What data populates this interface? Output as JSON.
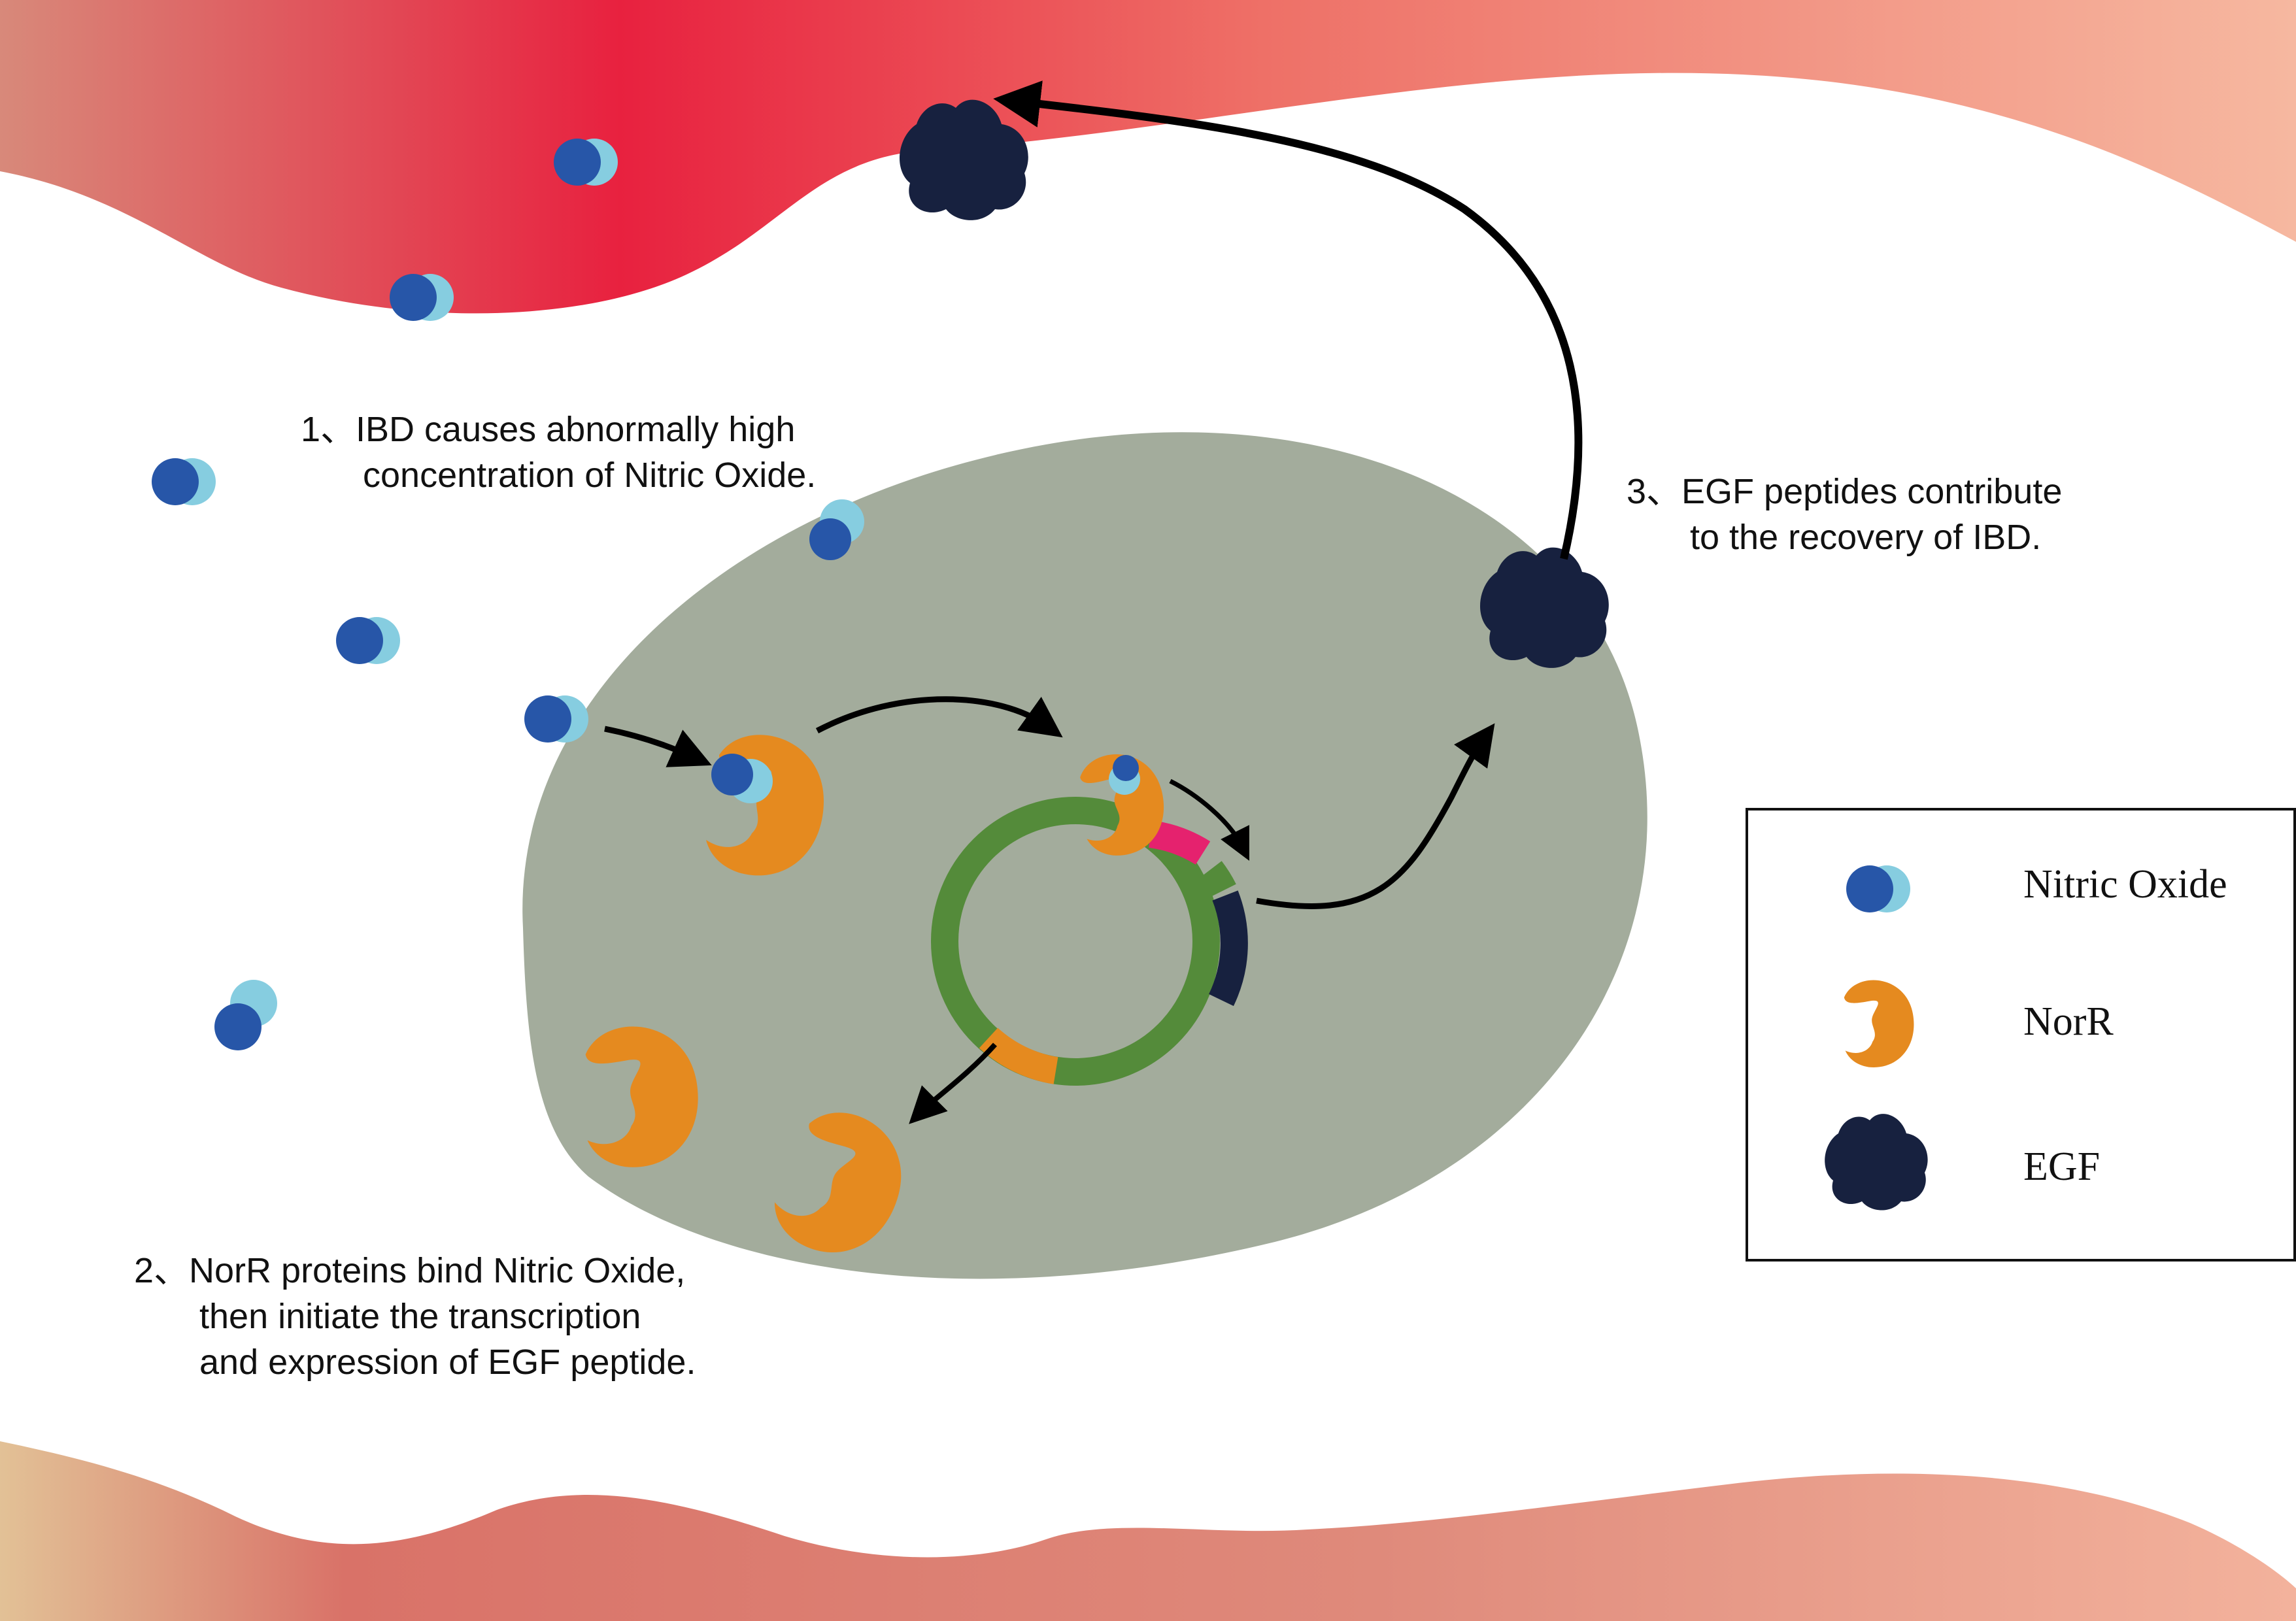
{
  "steps": [
    {
      "lines": [
        "1、IBD causes abnormally high",
        "concentration of Nitric Oxide."
      ]
    },
    {
      "lines": [
        "2、NorR proteins bind Nitric Oxide,",
        "then initiate the transcription",
        "and expression of EGF peptide."
      ]
    },
    {
      "lines": [
        "3、EGF peptides contribute",
        "to the recovery of IBD."
      ]
    }
  ],
  "legend": {
    "items": [
      {
        "icon": "nitric-oxide-icon",
        "label": "Nitric Oxide"
      },
      {
        "icon": "norr-icon",
        "label": "NorR"
      },
      {
        "icon": "egf-icon",
        "label": "EGF"
      }
    ]
  },
  "colors": {
    "tissue_top": [
      "#d8897a",
      "#e8213f",
      "#ee7067",
      "#f6b8a0"
    ],
    "tissue_bottom": [
      "#e2c196",
      "#d97268",
      "#df8a7b",
      "#f3b29c"
    ],
    "cell": "#a3ac9c",
    "no_dark": "#2756a8",
    "no_light": "#86cde0",
    "norr": "#e58a1f",
    "egf": "#17213f",
    "plasmid": "#548b3a",
    "plasmid_promoter": "#e5226e",
    "plasmid_gene": "#17213f",
    "plasmid_orange": "#e58a1f"
  }
}
